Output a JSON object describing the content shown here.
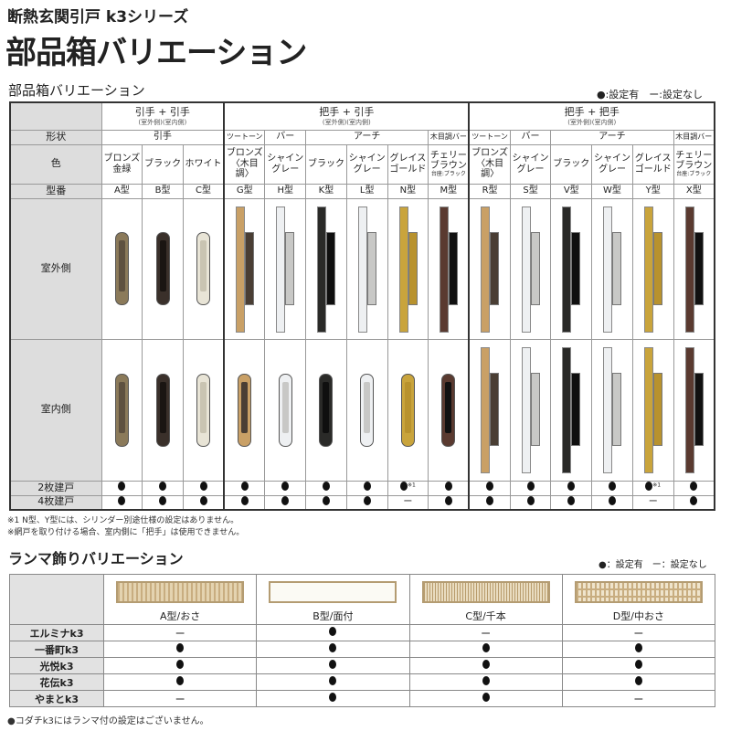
{
  "header": {
    "series": "断熱玄関引戸 k3シリーズ",
    "title": "部品箱バリエーション"
  },
  "handles": {
    "section_title": "部品箱バリエーション",
    "legend": "●:設定有　ー:設定なし",
    "label_header": "",
    "groups": [
      {
        "title": "引手 + 引手",
        "sub": "(室外側)(室内側)",
        "span": 3
      },
      {
        "title": "把手 + 引手",
        "sub": "(室外側)(室内側)",
        "span": 6
      },
      {
        "title": "把手 + 把手",
        "sub": "(室外側)(室内側)",
        "span": 6
      }
    ],
    "row_labels": {
      "shape": "形状",
      "color": "色",
      "model": "型番",
      "outside": "室外側",
      "inside": "室内側",
      "two": "2枚建戸",
      "four": "4枚建戸"
    },
    "shapes": [
      {
        "label": "引手",
        "span": 3
      },
      {
        "label": "ツートーン",
        "span": 1
      },
      {
        "label": "バー",
        "span": 1
      },
      {
        "label": "アーチ",
        "span": 3
      },
      {
        "label": "木目調バー",
        "span": 1
      },
      {
        "label": "ツートーン",
        "span": 1
      },
      {
        "label": "バー",
        "span": 1
      },
      {
        "label": "アーチ",
        "span": 3
      },
      {
        "label": "木目調バー",
        "span": 1
      }
    ],
    "columns": [
      {
        "color": "ブロンズ 金緑",
        "note": "",
        "model": "A型",
        "two": "●",
        "four": "●",
        "out": "pull",
        "in": "pull",
        "c1": "#8b7a5a",
        "c2": "#5e5140"
      },
      {
        "color": "ブラック",
        "note": "",
        "model": "B型",
        "two": "●",
        "four": "●",
        "out": "pull",
        "in": "pull",
        "c1": "#3a302a",
        "c2": "#1a1512"
      },
      {
        "color": "ホワイト",
        "note": "",
        "model": "C型",
        "two": "●",
        "four": "●",
        "out": "pull",
        "in": "pull",
        "c1": "#e8e4d6",
        "c2": "#c9c4b2"
      },
      {
        "color": "ブロンズ 〈木目調〉",
        "note": "",
        "model": "G型",
        "two": "●",
        "four": "●",
        "out": "bar",
        "in": "pull",
        "c1": "#c9a066",
        "c2": "#4a3e34"
      },
      {
        "color": "シャイン グレー",
        "note": "",
        "model": "H型",
        "two": "●",
        "four": "●",
        "out": "bar",
        "in": "pull",
        "c1": "#eef0f2",
        "c2": "#c8c8c6"
      },
      {
        "color": "ブラック",
        "note": "",
        "model": "K型",
        "two": "●",
        "four": "●",
        "out": "bar",
        "in": "pull",
        "c1": "#2a2a28",
        "c2": "#0f0f0f"
      },
      {
        "color": "シャイン グレー",
        "note": "",
        "model": "L型",
        "two": "●",
        "four": "●",
        "out": "bar",
        "in": "pull",
        "c1": "#eef0f2",
        "c2": "#c8c8c6"
      },
      {
        "color": "グレイス ゴールド",
        "note": "",
        "model": "N型",
        "two": "●",
        "two_mark": "※1",
        "four": "ー",
        "out": "bar",
        "in": "pull",
        "c1": "#c9a43c",
        "c2": "#b8922e"
      },
      {
        "color": "チェリー ブラウン",
        "note": "台座:ブラック",
        "model": "M型",
        "two": "●",
        "four": "●",
        "out": "bar",
        "in": "pull",
        "c1": "#5a3a30",
        "c2": "#111"
      },
      {
        "color": "ブロンズ 〈木目調〉",
        "note": "",
        "model": "R型",
        "two": "●",
        "four": "●",
        "out": "bar",
        "in": "bar",
        "c1": "#c9a066",
        "c2": "#4a3e34"
      },
      {
        "color": "シャイン グレー",
        "note": "",
        "model": "S型",
        "two": "●",
        "four": "●",
        "out": "bar",
        "in": "bar",
        "c1": "#eef0f2",
        "c2": "#c8c8c6"
      },
      {
        "color": "ブラック",
        "note": "",
        "model": "V型",
        "two": "●",
        "four": "●",
        "out": "bar",
        "in": "bar",
        "c1": "#2a2a28",
        "c2": "#0f0f0f"
      },
      {
        "color": "シャイン グレー",
        "note": "",
        "model": "W型",
        "two": "●",
        "four": "●",
        "out": "bar",
        "in": "bar",
        "c1": "#eef0f2",
        "c2": "#c8c8c6"
      },
      {
        "color": "グレイス ゴールド",
        "note": "",
        "model": "Y型",
        "two": "●",
        "two_mark": "※1",
        "four": "ー",
        "out": "bar",
        "in": "bar",
        "c1": "#c9a43c",
        "c2": "#b8922e"
      },
      {
        "color": "チェリー ブラウン",
        "note": "台座:ブラック",
        "model": "X型",
        "two": "●",
        "four": "●",
        "out": "bar",
        "in": "bar",
        "c1": "#5a3a30",
        "c2": "#111"
      }
    ],
    "notes": [
      "※1 N型、Y型には、シリンダー別途仕様の設定はありません。",
      "※網戸を取り付ける場合、室内側に「把手」は使用できません。"
    ]
  },
  "ramma": {
    "section_title": "ランマ飾りバリエーション",
    "legend": "●：設定有　ー：設定なし",
    "types": [
      {
        "label": "A型/おさ",
        "pattern": "vertical"
      },
      {
        "label": "B型/面付",
        "pattern": "plain"
      },
      {
        "label": "C型/千本",
        "pattern": "fine"
      },
      {
        "label": "D型/中おさ",
        "pattern": "frame"
      }
    ],
    "rows": [
      {
        "name": "エルミナk3",
        "values": [
          "ー",
          "●",
          "ー",
          "ー"
        ]
      },
      {
        "name": "一番町k3",
        "values": [
          "●",
          "●",
          "●",
          "●"
        ]
      },
      {
        "name": "光悦k3",
        "values": [
          "●",
          "●",
          "●",
          "●"
        ]
      },
      {
        "name": "花伝k3",
        "values": [
          "●",
          "●",
          "●",
          "●"
        ]
      },
      {
        "name": "やまとk3",
        "values": [
          "ー",
          "●",
          "●",
          "ー"
        ]
      }
    ],
    "note": "●コダチk3にはランマ付の設定はございません。"
  }
}
